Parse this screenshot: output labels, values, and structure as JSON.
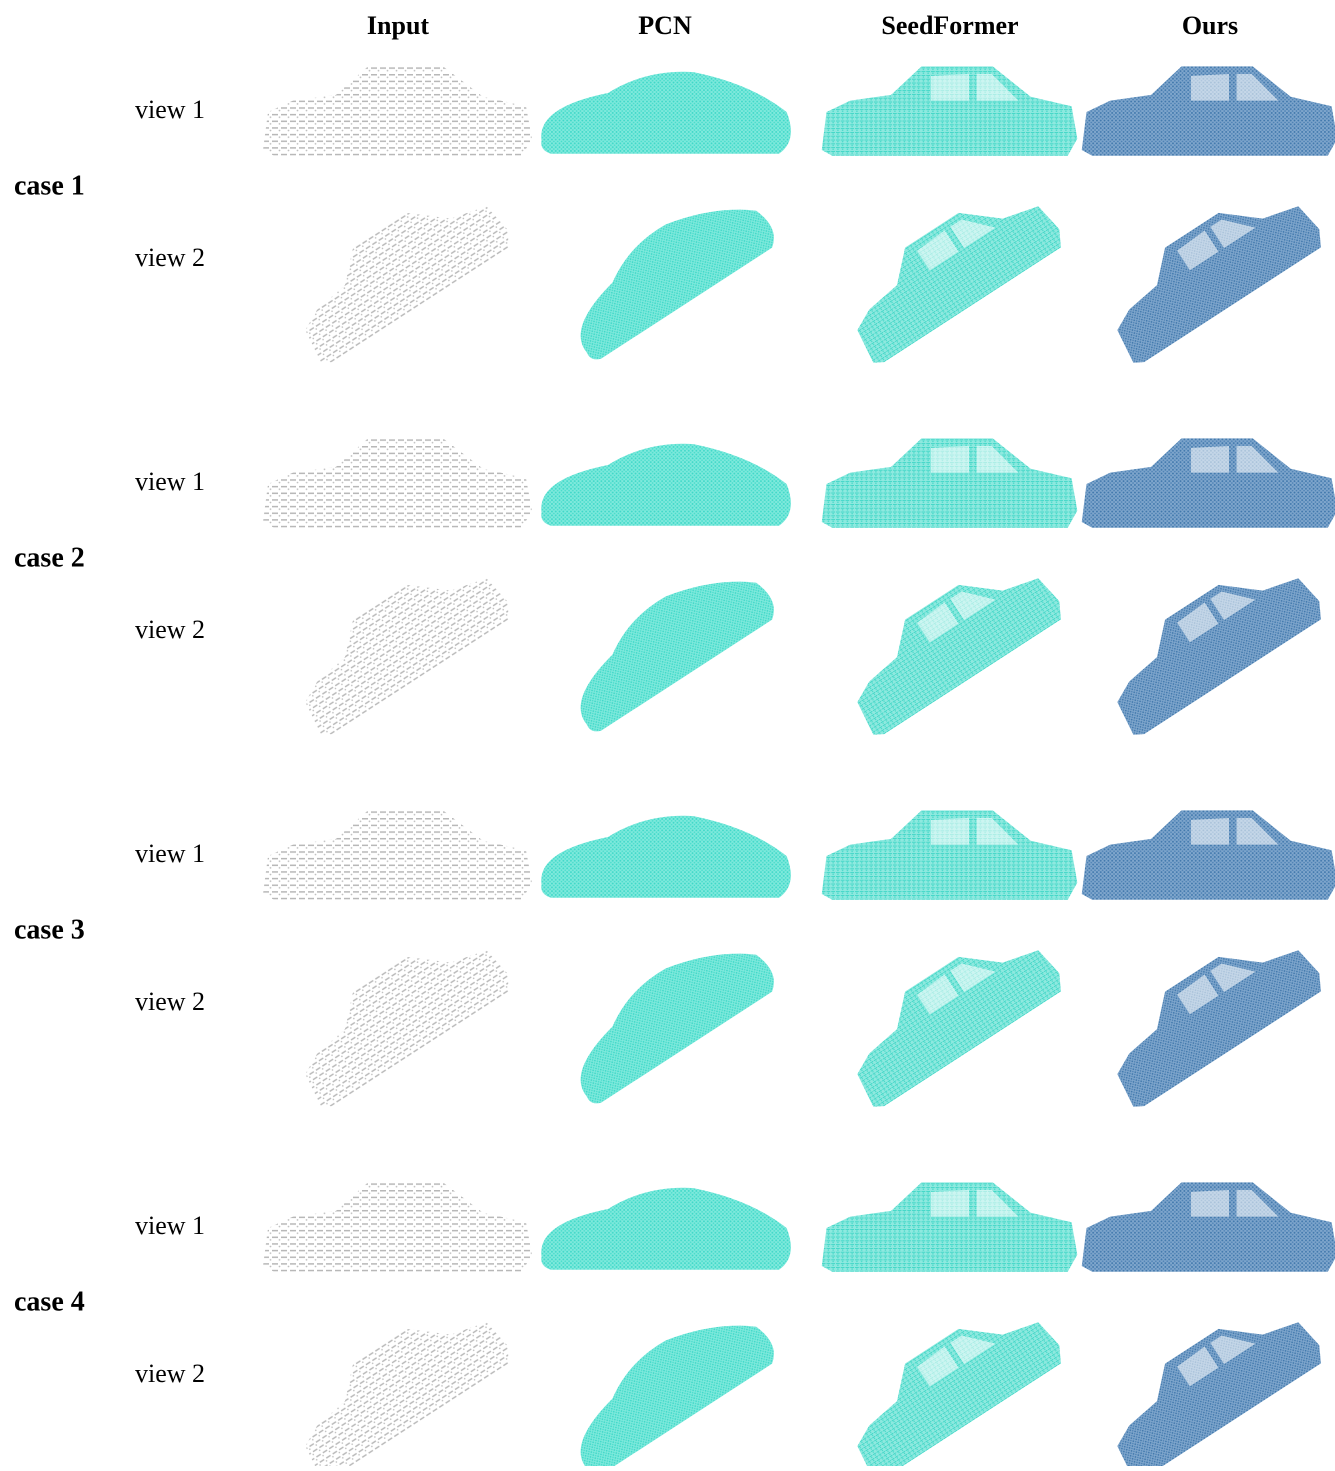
{
  "header": {
    "columns": [
      "Input",
      "PCN",
      "SeedFormer",
      "Ours"
    ]
  },
  "cases": [
    {
      "label": "case 1",
      "views": [
        "view 1",
        "view 2"
      ]
    },
    {
      "label": "case 2",
      "views": [
        "view 1",
        "view 2"
      ]
    },
    {
      "label": "case 3",
      "views": [
        "view 1",
        "view 2"
      ]
    },
    {
      "label": "case 4",
      "views": [
        "view 1",
        "view 2"
      ]
    }
  ]
}
